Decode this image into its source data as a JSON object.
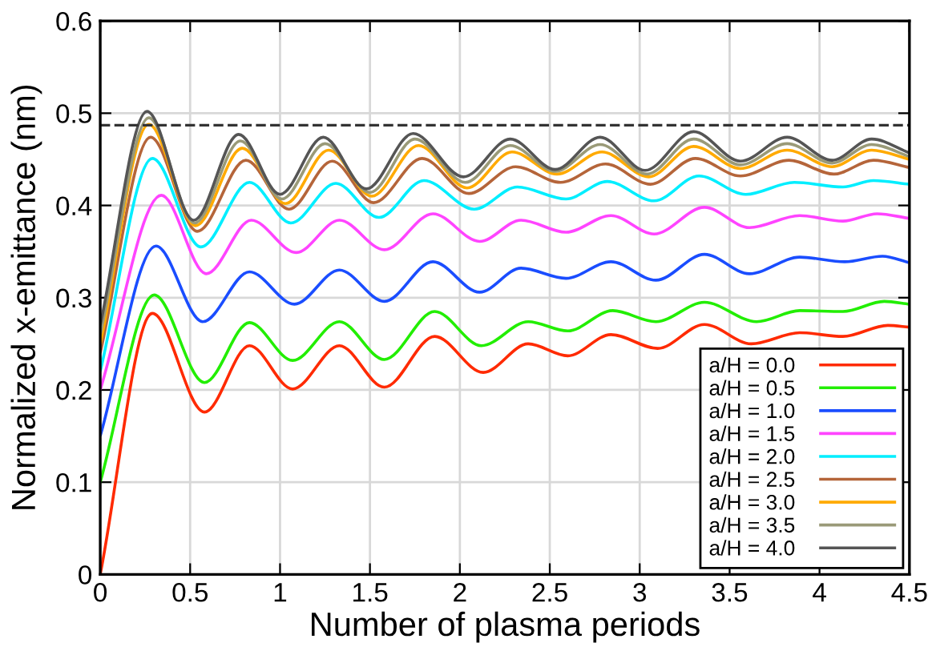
{
  "chart_data": {
    "type": "line",
    "xlabel": "Number of plasma periods",
    "ylabel": "Normalized x-emittance (nm)",
    "xlim": [
      0,
      4.5
    ],
    "ylim": [
      0,
      0.6
    ],
    "xticks": [
      0,
      0.5,
      1,
      1.5,
      2,
      2.5,
      3,
      3.5,
      4,
      4.5
    ],
    "yticks": [
      0,
      0.1,
      0.2,
      0.3,
      0.4,
      0.5,
      0.6
    ],
    "grid": true,
    "legend": "bottom right",
    "line_style": "solid",
    "marker": "none",
    "ref_lines": [
      {
        "axis": "y",
        "value": 0.487,
        "color": "#333333",
        "line_style": "dashed"
      }
    ],
    "series": [
      {
        "name": "a/H = 0.0",
        "color": "#ff2a00",
        "x": [
          0,
          0.29,
          0.58,
          0.83,
          1.07,
          1.33,
          1.58,
          1.86,
          2.13,
          2.38,
          2.6,
          2.84,
          3.1,
          3.36,
          3.62,
          3.89,
          4.13,
          4.38,
          4.5
        ],
        "values": [
          0,
          0.283,
          0.176,
          0.248,
          0.201,
          0.248,
          0.203,
          0.258,
          0.219,
          0.25,
          0.237,
          0.26,
          0.245,
          0.271,
          0.25,
          0.262,
          0.258,
          0.27,
          0.268
        ]
      },
      {
        "name": "a/H = 0.5",
        "color": "#22ee00",
        "x": [
          0,
          0.3,
          0.58,
          0.83,
          1.07,
          1.33,
          1.58,
          1.86,
          2.12,
          2.38,
          2.6,
          2.85,
          3.09,
          3.36,
          3.65,
          3.89,
          4.13,
          4.36,
          4.5
        ],
        "values": [
          0.1,
          0.303,
          0.208,
          0.273,
          0.232,
          0.274,
          0.233,
          0.285,
          0.248,
          0.274,
          0.264,
          0.286,
          0.274,
          0.295,
          0.274,
          0.286,
          0.285,
          0.296,
          0.293
        ]
      },
      {
        "name": "a/H = 1.0",
        "color": "#1a4dff",
        "x": [
          0,
          0.31,
          0.57,
          0.83,
          1.08,
          1.33,
          1.58,
          1.85,
          2.11,
          2.34,
          2.59,
          2.84,
          3.09,
          3.36,
          3.61,
          3.89,
          4.14,
          4.35,
          4.5
        ],
        "values": [
          0.15,
          0.356,
          0.274,
          0.328,
          0.293,
          0.33,
          0.296,
          0.339,
          0.306,
          0.332,
          0.321,
          0.339,
          0.319,
          0.347,
          0.326,
          0.344,
          0.339,
          0.345,
          0.338
        ]
      },
      {
        "name": "a/H = 1.5",
        "color": "#ff44ff",
        "x": [
          0,
          0.34,
          0.59,
          0.84,
          1.09,
          1.33,
          1.58,
          1.85,
          2.11,
          2.34,
          2.59,
          2.84,
          3.08,
          3.36,
          3.61,
          3.89,
          4.13,
          4.32,
          4.5
        ],
        "values": [
          0.2,
          0.411,
          0.326,
          0.384,
          0.349,
          0.384,
          0.352,
          0.391,
          0.361,
          0.384,
          0.371,
          0.389,
          0.369,
          0.398,
          0.376,
          0.389,
          0.383,
          0.391,
          0.386
        ]
      },
      {
        "name": "a/H = 2.0",
        "color": "#00eeff",
        "x": [
          0,
          0.29,
          0.56,
          0.83,
          1.06,
          1.31,
          1.55,
          1.8,
          2.08,
          2.32,
          2.59,
          2.82,
          3.08,
          3.33,
          3.59,
          3.86,
          4.13,
          4.3,
          4.5
        ],
        "values": [
          0.22,
          0.451,
          0.355,
          0.425,
          0.381,
          0.424,
          0.387,
          0.427,
          0.396,
          0.42,
          0.407,
          0.426,
          0.405,
          0.432,
          0.412,
          0.425,
          0.42,
          0.427,
          0.423
        ]
      },
      {
        "name": "a/H = 2.5",
        "color": "#b5653a",
        "x": [
          0,
          0.28,
          0.54,
          0.81,
          1.05,
          1.29,
          1.52,
          1.79,
          2.05,
          2.31,
          2.56,
          2.81,
          3.06,
          3.31,
          3.56,
          3.83,
          4.08,
          4.3,
          4.5
        ],
        "values": [
          0.24,
          0.474,
          0.372,
          0.449,
          0.396,
          0.448,
          0.403,
          0.451,
          0.413,
          0.442,
          0.425,
          0.445,
          0.423,
          0.451,
          0.432,
          0.449,
          0.434,
          0.449,
          0.441
        ]
      },
      {
        "name": "a/H = 3.0",
        "color": "#ffaa00",
        "x": [
          0,
          0.27,
          0.53,
          0.79,
          1.03,
          1.27,
          1.51,
          1.77,
          2.04,
          2.29,
          2.54,
          2.79,
          3.05,
          3.3,
          3.56,
          3.82,
          4.07,
          4.29,
          4.5
        ],
        "values": [
          0.25,
          0.488,
          0.378,
          0.462,
          0.402,
          0.46,
          0.41,
          0.465,
          0.419,
          0.458,
          0.434,
          0.458,
          0.431,
          0.464,
          0.44,
          0.46,
          0.442,
          0.46,
          0.45
        ]
      },
      {
        "name": "a/H = 3.5",
        "color": "#9a9a78",
        "x": [
          0,
          0.27,
          0.525,
          0.78,
          1.01,
          1.25,
          1.5,
          1.75,
          2.03,
          2.28,
          2.53,
          2.78,
          3.04,
          3.3,
          3.56,
          3.82,
          4.07,
          4.29,
          4.5
        ],
        "values": [
          0.26,
          0.495,
          0.381,
          0.47,
          0.407,
          0.467,
          0.414,
          0.472,
          0.425,
          0.465,
          0.437,
          0.466,
          0.434,
          0.472,
          0.444,
          0.467,
          0.446,
          0.466,
          0.453
        ]
      },
      {
        "name": "a/H = 4.0",
        "color": "#555555",
        "x": [
          0,
          0.26,
          0.52,
          0.77,
          1.0,
          1.24,
          1.48,
          1.74,
          2.02,
          2.28,
          2.53,
          2.78,
          3.03,
          3.3,
          3.56,
          3.82,
          4.07,
          4.29,
          4.5
        ],
        "values": [
          0.27,
          0.502,
          0.384,
          0.477,
          0.412,
          0.474,
          0.418,
          0.478,
          0.431,
          0.472,
          0.439,
          0.474,
          0.438,
          0.48,
          0.448,
          0.474,
          0.449,
          0.472,
          0.457
        ]
      }
    ]
  }
}
